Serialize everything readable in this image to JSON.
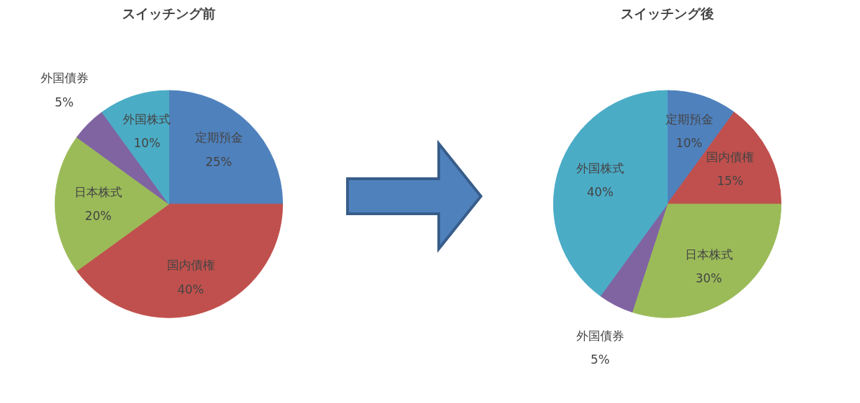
{
  "chart_data": [
    {
      "type": "pie",
      "title": "スイッチング前",
      "categories": [
        "定期預金",
        "国内債権",
        "日本株式",
        "外国債券",
        "外国株式"
      ],
      "values": [
        25,
        40,
        20,
        5,
        10
      ],
      "value_labels": [
        "25%",
        "40%",
        "20%",
        "5%",
        "10%"
      ],
      "colors": [
        "#4f81bd",
        "#c0504d",
        "#9bbb59",
        "#8064a2",
        "#4bacc6"
      ]
    },
    {
      "type": "pie",
      "title": "スイッチング後",
      "categories": [
        "定期預金",
        "国内債権",
        "日本株式",
        "外国債券",
        "外国株式"
      ],
      "values": [
        10,
        15,
        30,
        5,
        40
      ],
      "value_labels": [
        "10%",
        "15%",
        "30%",
        "5%",
        "40%"
      ],
      "colors": [
        "#4f81bd",
        "#c0504d",
        "#9bbb59",
        "#8064a2",
        "#4bacc6"
      ]
    }
  ]
}
